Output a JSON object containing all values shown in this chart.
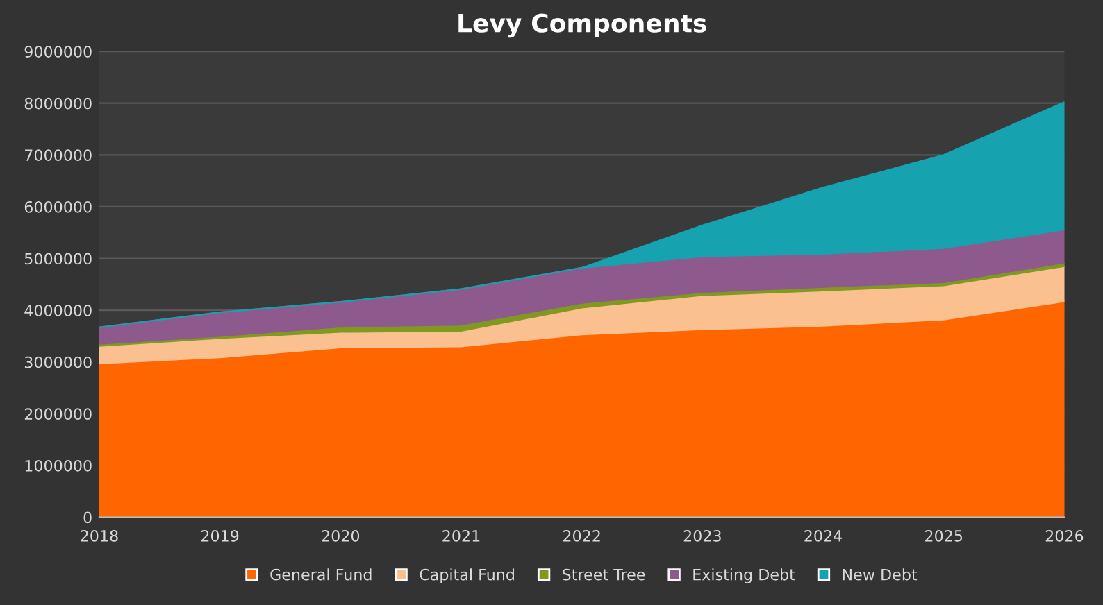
{
  "chart_data": {
    "type": "area",
    "title": "Levy Components",
    "stacked": true,
    "x": [
      2018,
      2019,
      2020,
      2021,
      2022,
      2023,
      2024,
      2025,
      2026
    ],
    "series": [
      {
        "name": "General Fund",
        "color": "#ff6600",
        "values": [
          2970000,
          3090000,
          3280000,
          3300000,
          3530000,
          3630000,
          3700000,
          3820000,
          4170000
        ]
      },
      {
        "name": "Capital Fund",
        "color": "#fac090",
        "values": [
          340000,
          370000,
          300000,
          300000,
          520000,
          660000,
          680000,
          660000,
          680000
        ]
      },
      {
        "name": "Street Tree",
        "color": "#7f9a1f",
        "values": [
          40000,
          40000,
          100000,
          120000,
          90000,
          60000,
          70000,
          60000,
          70000
        ]
      },
      {
        "name": "Existing Debt",
        "color": "#8e5a8e",
        "values": [
          320000,
          460000,
          480000,
          690000,
          680000,
          690000,
          640000,
          660000,
          640000
        ]
      },
      {
        "name": "New Debt",
        "color": "#17a2b0",
        "values": [
          0,
          0,
          0,
          0,
          0,
          600000,
          1280000,
          1800000,
          2460000
        ]
      }
    ],
    "xlim": [
      2018,
      2026
    ],
    "xticks": [
      2018,
      2019,
      2020,
      2021,
      2022,
      2023,
      2024,
      2025,
      2026
    ],
    "ylim": [
      0,
      9000000
    ],
    "yticks": [
      0,
      1000000,
      2000000,
      3000000,
      4000000,
      5000000,
      6000000,
      7000000,
      8000000,
      9000000
    ],
    "grid": "y",
    "legend": "bottom"
  }
}
